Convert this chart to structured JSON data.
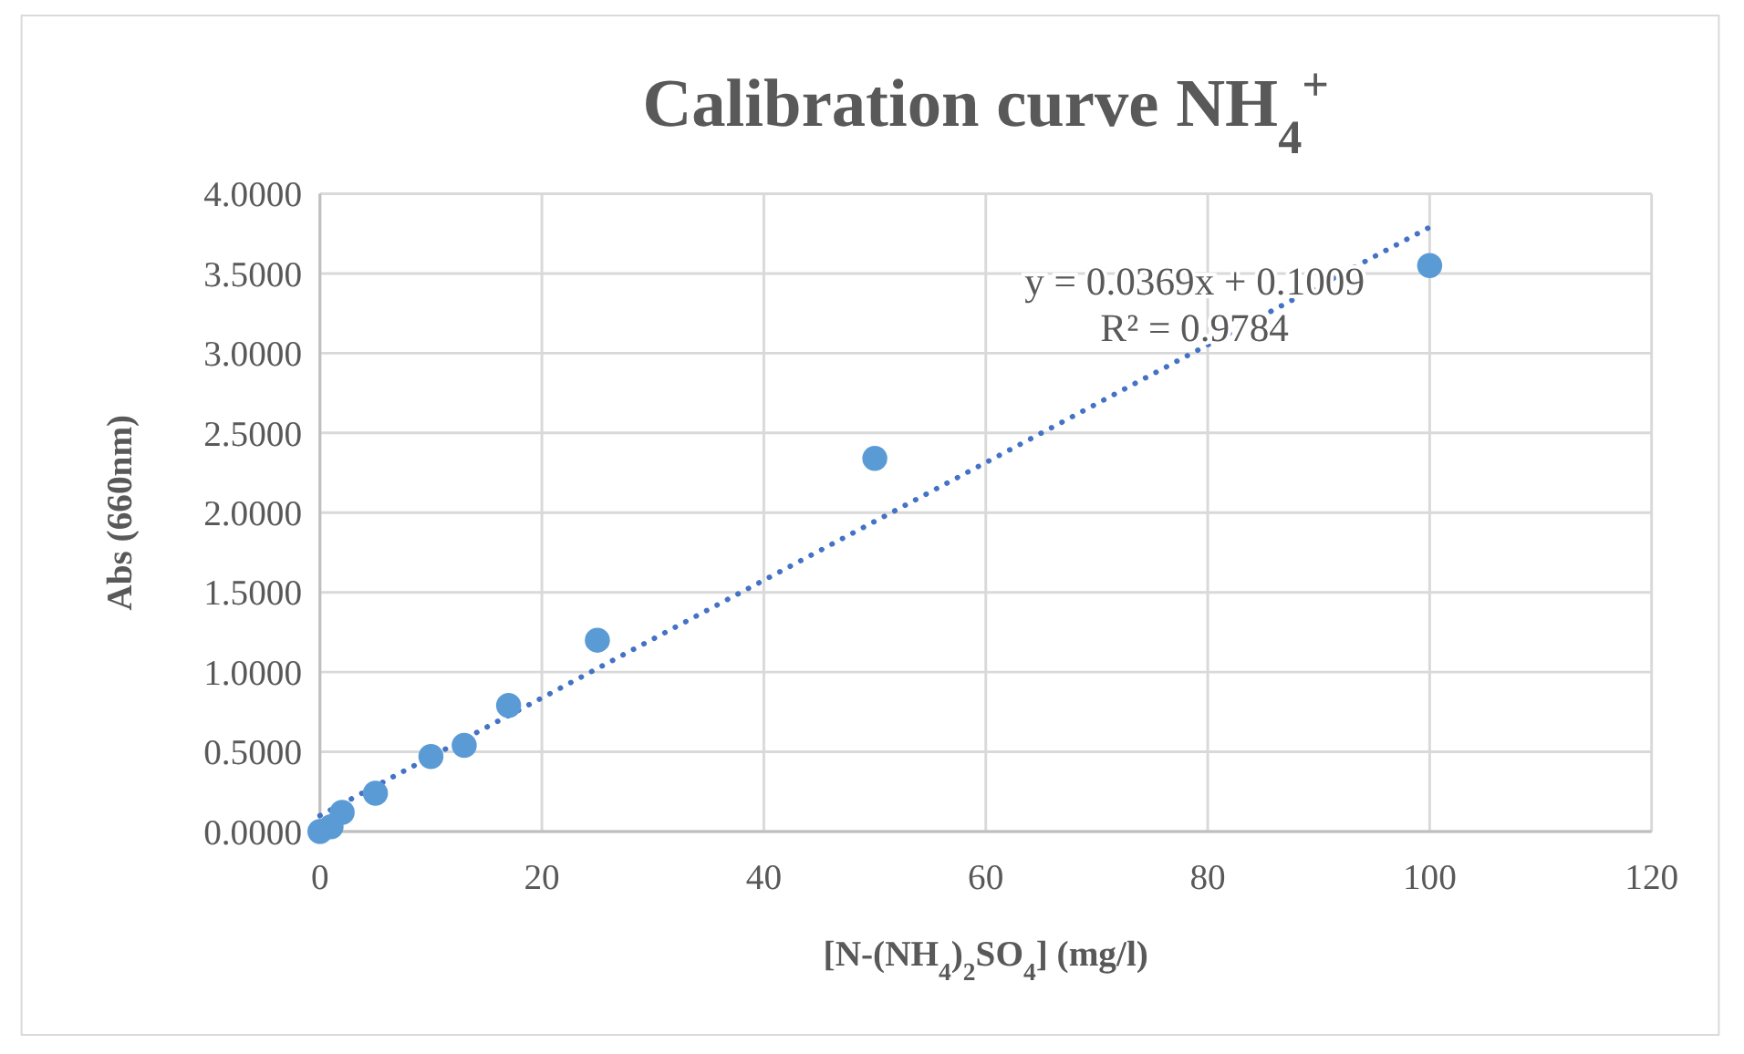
{
  "chart_data": {
    "type": "scatter",
    "title": "Calibration curve NH$_{4}$$^{+}$",
    "xlabel": "[N-(NH$_{4}$)$_{2}$SO$_{4}$] (mg/l)",
    "ylabel": "Abs (660nm)",
    "annotations": [
      "y = 0.0369x + 0.1009",
      "R² = 0.9784"
    ],
    "series": [
      {
        "color": "#5b9bd5",
        "x": [
          0,
          1,
          2,
          5,
          10,
          13,
          17,
          25,
          50,
          100
        ],
        "values": [
          0,
          0.03,
          0.12,
          0.24,
          0.47,
          0.54,
          0.79,
          1.2,
          2.34,
          3.55
        ]
      },
      {
        "type": "line",
        "color": "#4472c4",
        "line_style": "dotted",
        "marker": "none",
        "x": [
          0,
          100
        ],
        "values": [
          0.1,
          3.79
        ]
      }
    ],
    "xlim": [
      0,
      120
    ],
    "xticks": [
      0,
      20,
      40,
      60,
      80,
      100,
      120
    ],
    "ylim": [
      0,
      4
    ],
    "yticks": [
      {
        "value": 0,
        "label": "0.0000"
      },
      {
        "value": 0.5,
        "label": "0.5000"
      },
      {
        "value": 1,
        "label": "1.0000"
      },
      {
        "value": 1.5,
        "label": "1.5000"
      },
      {
        "value": 2,
        "label": "2.0000"
      },
      {
        "value": 2.5,
        "label": "2.5000"
      },
      {
        "value": 3,
        "label": "3.0000"
      },
      {
        "value": 3.5,
        "label": "3.5000"
      },
      {
        "value": 4,
        "label": "4.0000"
      }
    ],
    "grid": true,
    "marker": "circle"
  }
}
